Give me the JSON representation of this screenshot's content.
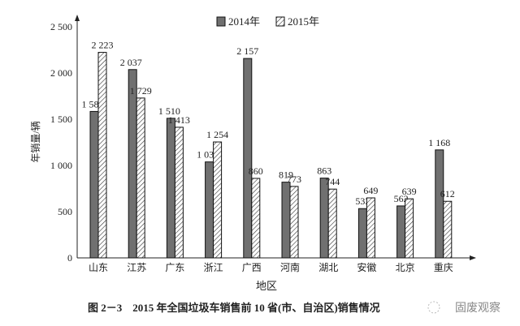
{
  "chart_data": {
    "type": "bar",
    "title": "图 2－3　2015 年全国垃圾车销售前 10 省(市、自治区)销售情况",
    "xlabel": "地区",
    "ylabel": "年销量/辆",
    "ylim": [
      0,
      2500
    ],
    "yticks": [
      0,
      500,
      1000,
      1500,
      2000,
      2500
    ],
    "ytick_labels": [
      "0",
      "500",
      "1 000",
      "1 500",
      "2 000",
      "2 500"
    ],
    "categories": [
      "山东",
      "江苏",
      "广东",
      "浙江",
      "广西",
      "河南",
      "湖北",
      "安徽",
      "北京",
      "重庆"
    ],
    "series": [
      {
        "name": "2014年",
        "values": [
          1584,
          2037,
          1510,
          1038,
          2157,
          819,
          863,
          533,
          562,
          1168
        ],
        "labels": [
          "1 584",
          "2 037",
          "1 510",
          "1 038",
          "2 157",
          "819",
          "863",
          "533",
          "562",
          "1 168"
        ],
        "color": "#707070",
        "pattern": "solid"
      },
      {
        "name": "2015年",
        "values": [
          2223,
          1729,
          1413,
          1254,
          860,
          773,
          744,
          649,
          639,
          612
        ],
        "labels": [
          "2 223",
          "1 729",
          "1 413",
          "1 254",
          "860",
          "773",
          "744",
          "649",
          "639",
          "612"
        ],
        "color": "#ffffff",
        "pattern": "hatched"
      }
    ],
    "legend_position": "top",
    "grid": false
  },
  "watermark": "固废观察"
}
